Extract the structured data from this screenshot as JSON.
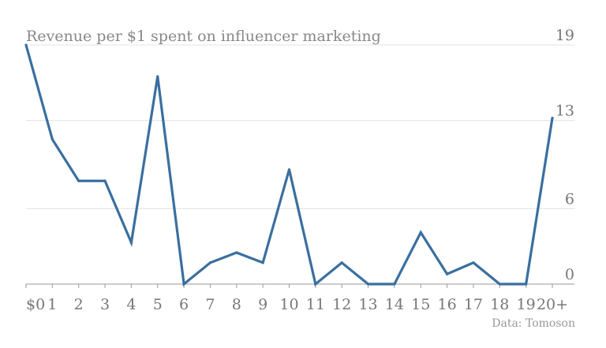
{
  "chart_data": {
    "type": "line",
    "title": "Revenue per $1 spent on influencer marketing",
    "source": "Data: Tomoson",
    "xlabel": "",
    "ylabel": "",
    "categories": [
      "$0",
      "1",
      "2",
      "3",
      "4",
      "5",
      "6",
      "7",
      "8",
      "9",
      "10",
      "11",
      "12",
      "13",
      "14",
      "15",
      "16",
      "17",
      "18",
      "19",
      "20+"
    ],
    "y_ticks": [
      0,
      6,
      13,
      19
    ],
    "ylim": [
      0,
      19
    ],
    "grid": true,
    "series": [
      {
        "values": [
          19,
          11.5,
          8.2,
          8.2,
          3.3,
          16.5,
          0,
          1.7,
          2.5,
          1.7,
          9.1,
          0,
          1.7,
          0,
          0,
          4.1,
          0.8,
          1.7,
          0,
          0,
          13.2
        ],
        "color": "#3a6f9f"
      }
    ]
  }
}
